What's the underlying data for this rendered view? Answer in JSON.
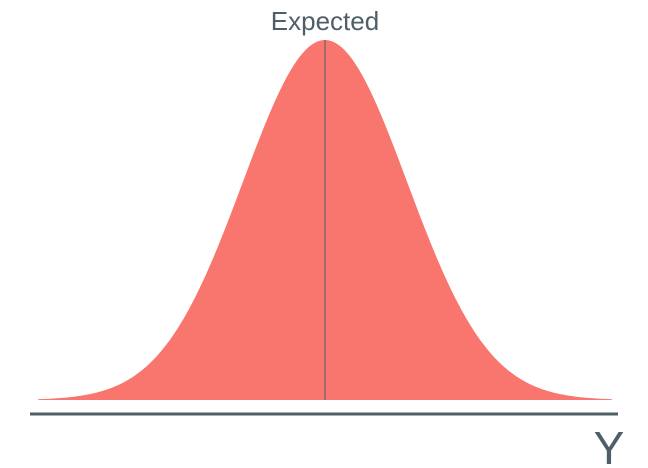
{
  "chart_data": {
    "type": "area",
    "distribution": "normal",
    "mean": 0,
    "sd": 1,
    "xlim": [
      -3.5,
      3.5
    ],
    "annotation": "Expected",
    "xlabel": "Y",
    "ylabel": "",
    "title": "",
    "grid": false,
    "y_ticks": false,
    "x_ticks": false
  },
  "colors": {
    "fill": "#f8766d",
    "line": "#4f5f68",
    "text": "#4f5f68",
    "background": "#ffffff"
  }
}
